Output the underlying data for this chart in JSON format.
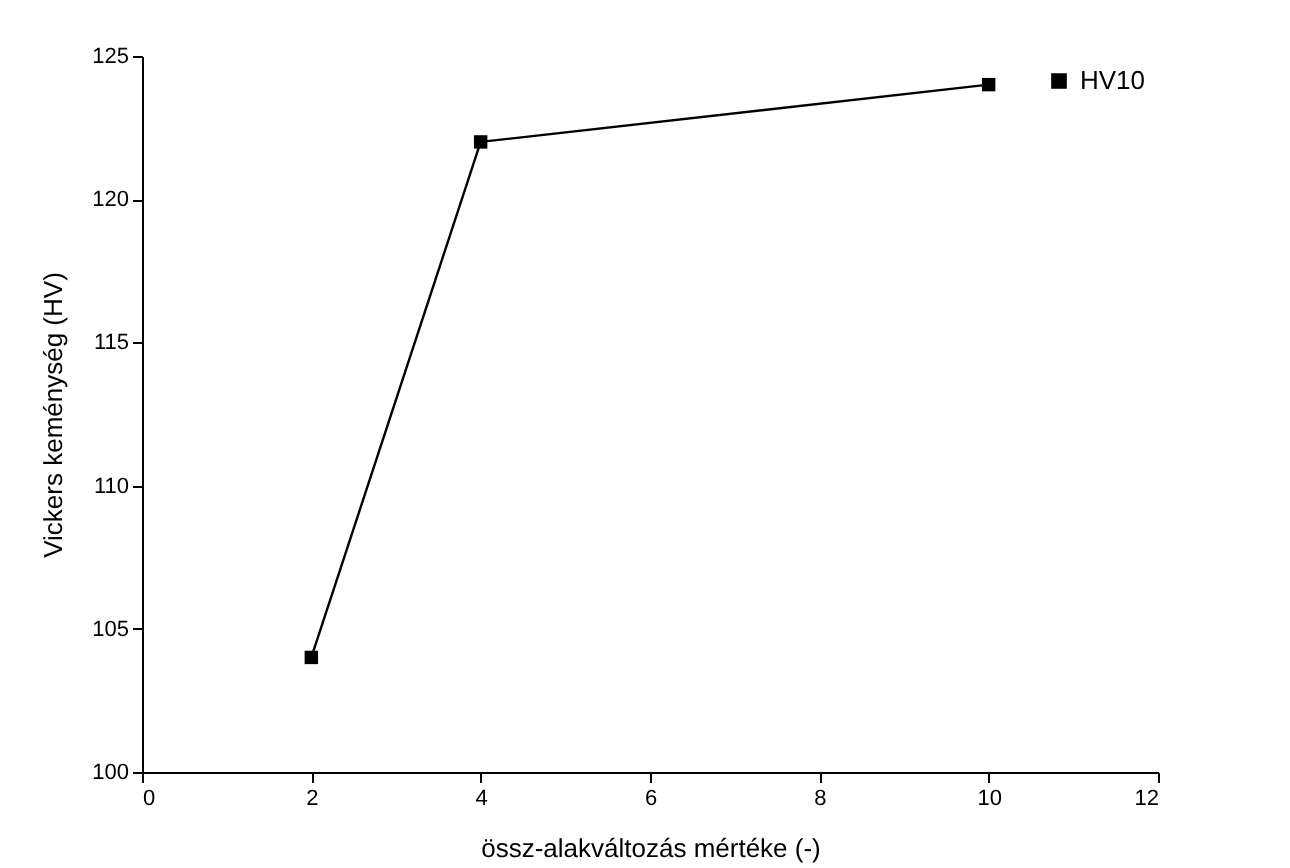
{
  "chart_data": {
    "type": "line",
    "xlabel": "össz-alakváltozás mértéke (-)",
    "ylabel": "Vickers keménység (HV)",
    "x": [
      2,
      4,
      10
    ],
    "series": [
      {
        "name": "HV10",
        "color": "#000000",
        "values": [
          104,
          122,
          124
        ]
      }
    ],
    "xlim": [
      0,
      12
    ],
    "xticks": [
      0,
      2,
      4,
      6,
      8,
      10,
      12
    ],
    "ylim": [
      100,
      125
    ],
    "yticks": [
      100,
      105,
      110,
      115,
      120,
      125
    ],
    "grid": false,
    "legend": "top right",
    "marker": "square",
    "line_style": "solid"
  }
}
